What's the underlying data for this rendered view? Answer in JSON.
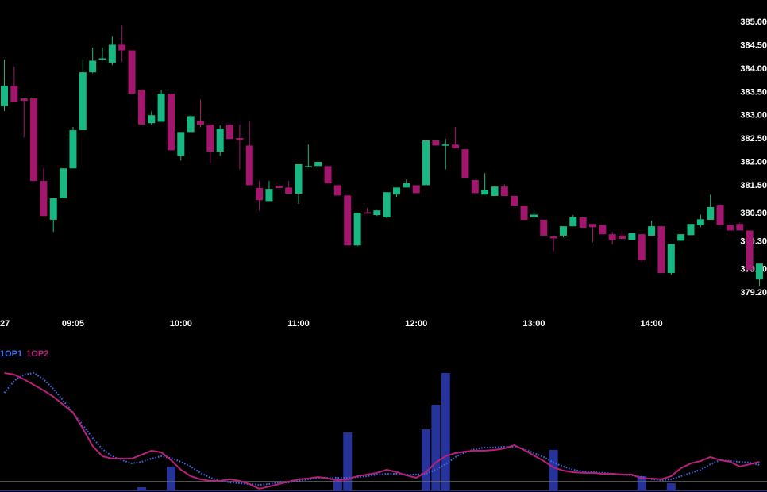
{
  "chart_data": [
    {
      "type": "candlestick",
      "categories": [
        "27",
        null,
        null,
        null,
        null,
        null,
        null,
        "09:05",
        null,
        null,
        null,
        null,
        null,
        null,
        null,
        null,
        null,
        null,
        "10:00",
        null,
        null,
        null,
        null,
        null,
        null,
        null,
        null,
        null,
        null,
        null,
        "11:00",
        null,
        null,
        null,
        null,
        null,
        null,
        null,
        null,
        null,
        null,
        null,
        "12:00",
        null,
        null,
        null,
        null,
        null,
        null,
        null,
        null,
        null,
        null,
        null,
        "13:00",
        null,
        null,
        null,
        null,
        null,
        null,
        null,
        null,
        null,
        null,
        null,
        "14:00",
        null,
        null,
        null,
        null,
        null,
        null,
        null,
        null,
        null,
        null,
        null
      ],
      "open": [
        383.21,
        383.64,
        383.37,
        383.37,
        381.6,
        380.77,
        381.23,
        381.87,
        382.69,
        383.93,
        384.2,
        384.13,
        384.52,
        384.4,
        383.55,
        382.84,
        382.87,
        383.47,
        382.14,
        382.65,
        382.89,
        382.81,
        382.23,
        382.81,
        382.52,
        382.36,
        381.45,
        381.17,
        381.5,
        381.46,
        381.33,
        381.9,
        381.92,
        381.92,
        381.51,
        381.29,
        380.22,
        380.93,
        380.87,
        380.82,
        381.31,
        381.46,
        381.51,
        381.51,
        382.47,
        382.36,
        382.38,
        382.28,
        381.62,
        381.31,
        381.28,
        381.48,
        381.28,
        381.07,
        380.82,
        380.77,
        380.41,
        380.43,
        380.63,
        380.82,
        380.68,
        380.66,
        380.46,
        380.43,
        380.34,
        380.46,
        380.43,
        380.63,
        379.63,
        380.32,
        380.44,
        380.65,
        380.77,
        381.09,
        380.66,
        380.68,
        380.54,
        379.49
      ],
      "high": [
        384.2,
        384.05,
        383.37,
        383.37,
        381.87,
        381.23,
        381.87,
        382.76,
        384.2,
        384.46,
        384.46,
        384.71,
        384.93,
        384.4,
        383.55,
        383.09,
        383.55,
        383.47,
        382.65,
        383.01,
        383.35,
        382.81,
        382.79,
        382.81,
        382.81,
        382.89,
        381.6,
        381.6,
        381.5,
        381.6,
        381.96,
        382.38,
        382.01,
        381.92,
        381.51,
        381.29,
        380.92,
        381.02,
        380.97,
        381.36,
        381.46,
        381.63,
        381.51,
        382.47,
        382.47,
        382.5,
        382.76,
        382.28,
        381.62,
        381.77,
        381.48,
        381.53,
        381.28,
        381.07,
        380.97,
        380.77,
        380.41,
        380.63,
        380.87,
        380.82,
        380.68,
        380.66,
        380.51,
        380.54,
        380.48,
        380.46,
        380.75,
        380.63,
        380.25,
        380.46,
        380.68,
        380.88,
        381.31,
        381.09,
        380.66,
        380.71,
        380.54,
        379.83
      ],
      "low": [
        383.1,
        383.3,
        382.53,
        381.6,
        380.85,
        380.51,
        381.23,
        381.87,
        382.69,
        383.91,
        384.18,
        384.08,
        384.15,
        383.47,
        382.81,
        382.81,
        382.87,
        382.26,
        382.04,
        382.65,
        382.75,
        381.99,
        382.14,
        382.5,
        381.85,
        381.51,
        380.97,
        381.17,
        381.45,
        381.33,
        381.11,
        381.9,
        381.92,
        381.55,
        381.29,
        380.22,
        380.2,
        380.9,
        380.85,
        380.8,
        381.26,
        381.46,
        381.34,
        381.51,
        382.36,
        381.85,
        382.3,
        381.67,
        381.34,
        381.31,
        381.28,
        381.28,
        381.07,
        380.77,
        380.82,
        380.43,
        380.1,
        380.39,
        380.63,
        380.6,
        380.29,
        380.46,
        380.24,
        380.36,
        380.34,
        379.86,
        380.43,
        379.63,
        379.59,
        380.32,
        380.44,
        380.61,
        380.77,
        380.66,
        380.54,
        380.54,
        379.69,
        379.35
      ],
      "close": [
        383.64,
        383.3,
        383.32,
        381.6,
        380.85,
        381.23,
        381.87,
        382.69,
        383.93,
        384.18,
        384.23,
        384.52,
        384.4,
        383.47,
        382.81,
        383.01,
        383.47,
        382.26,
        382.65,
        382.99,
        382.81,
        382.23,
        382.72,
        382.5,
        382.48,
        381.51,
        381.19,
        381.43,
        381.45,
        381.33,
        381.96,
        381.92,
        382.01,
        381.55,
        381.29,
        380.22,
        380.92,
        380.9,
        380.97,
        381.36,
        381.46,
        381.55,
        381.34,
        382.47,
        382.36,
        382.38,
        382.3,
        381.67,
        381.34,
        381.4,
        381.48,
        381.28,
        381.07,
        380.77,
        380.88,
        380.43,
        380.37,
        380.63,
        380.83,
        380.6,
        380.61,
        380.46,
        380.34,
        380.36,
        380.48,
        379.9,
        380.63,
        379.63,
        380.25,
        380.46,
        380.68,
        380.78,
        381.04,
        380.66,
        380.54,
        380.54,
        379.69,
        379.83
      ],
      "up_color": "#17b884",
      "down_color": "#a3166d",
      "ylim": [
        379.0,
        385.48
      ],
      "yticks": [
        {
          "value": 385.0,
          "label": "385.00"
        },
        {
          "value": 384.5,
          "label": "384.50"
        },
        {
          "value": 384.0,
          "label": "384.00"
        },
        {
          "value": 383.5,
          "label": "383.50"
        },
        {
          "value": 383.0,
          "label": "383.00"
        },
        {
          "value": 382.5,
          "label": "382.50"
        },
        {
          "value": 382.0,
          "label": "382.00"
        },
        {
          "value": 381.5,
          "label": "381.50"
        },
        {
          "value": 380.9,
          "label": "380.90"
        },
        {
          "value": 380.3,
          "label": "380.30"
        },
        {
          "value": 379.7,
          "label": "379.70"
        },
        {
          "value": 379.2,
          "label": "379.20"
        }
      ]
    },
    {
      "type": "combo",
      "ylim": [
        0,
        100
      ],
      "hline": {
        "value": 7,
        "color": "#6b6b6b"
      },
      "bars": {
        "color": "#26339a",
        "values": [
          0,
          0,
          0,
          0,
          0,
          0,
          0,
          0,
          0,
          0,
          0,
          0,
          0,
          0,
          2.5,
          0,
          0,
          18.8,
          0,
          0,
          0,
          0,
          0,
          0,
          0,
          0,
          0,
          0,
          0,
          0,
          0,
          0,
          0,
          0,
          9.4,
          45.6,
          0,
          0,
          0,
          0,
          0,
          0,
          0,
          48.1,
          67.5,
          92.5,
          0,
          0,
          0,
          0,
          0,
          0,
          0,
          0,
          0,
          0,
          31.9,
          0,
          0,
          0,
          0,
          0,
          0,
          0,
          0,
          11.3,
          0,
          0,
          5.6,
          0,
          0,
          0,
          0,
          0,
          0,
          0,
          0,
          0
        ]
      },
      "series": [
        {
          "name": "1OP1",
          "color": "#3f6ef0",
          "style": "dotted",
          "values": [
            76.9,
            86.3,
            91.3,
            92.5,
            87.5,
            80,
            70.6,
            61.3,
            51.3,
            41.3,
            32.5,
            26.9,
            23.8,
            21.3,
            22.5,
            25,
            26.9,
            25.6,
            22.5,
            18.8,
            13.8,
            10,
            7.5,
            6.3,
            5.6,
            5,
            4.4,
            5,
            6.3,
            6.3,
            7.5,
            8.8,
            10,
            10,
            10,
            10,
            10.6,
            11.3,
            12.5,
            13.1,
            13.1,
            12.5,
            12.5,
            13.1,
            16.3,
            20.6,
            26.3,
            30,
            32.5,
            33.8,
            33.8,
            34.4,
            34.4,
            32.5,
            29.4,
            26.3,
            21.9,
            18.8,
            16.3,
            15,
            14.4,
            13.8,
            13.1,
            12.5,
            11.9,
            10.6,
            8.8,
            8.1,
            8.8,
            11.3,
            13.8,
            16.3,
            20.6,
            23.8,
            23.1,
            22.5,
            21.9,
            20
          ]
        },
        {
          "name": "1OP2",
          "color": "#b8217a",
          "style": "solid",
          "values": [
            92.5,
            91.3,
            87.5,
            83.1,
            78.8,
            73.8,
            67.5,
            61.3,
            48.8,
            35,
            26.9,
            25,
            25,
            25,
            28.1,
            31.3,
            30,
            23.8,
            16.3,
            11.3,
            8.8,
            7.5,
            7.5,
            8.8,
            7.5,
            5,
            1.3,
            3.1,
            5,
            6.9,
            8.8,
            9.4,
            10.6,
            9.4,
            8.1,
            8.8,
            11.3,
            12.5,
            13.8,
            16.3,
            14.4,
            11.9,
            10,
            14.4,
            21.9,
            26.9,
            29.4,
            30.6,
            31.3,
            31.3,
            31.9,
            33.1,
            35.6,
            31.9,
            27.5,
            23.1,
            18.1,
            15.6,
            14.4,
            13.8,
            13.8,
            13.1,
            13.1,
            12.5,
            12.5,
            9.4,
            9.4,
            8.8,
            11.3,
            17.5,
            21.3,
            23.1,
            26.3,
            23.8,
            22.5,
            18.8,
            20.6,
            22.5
          ]
        }
      ]
    }
  ]
}
